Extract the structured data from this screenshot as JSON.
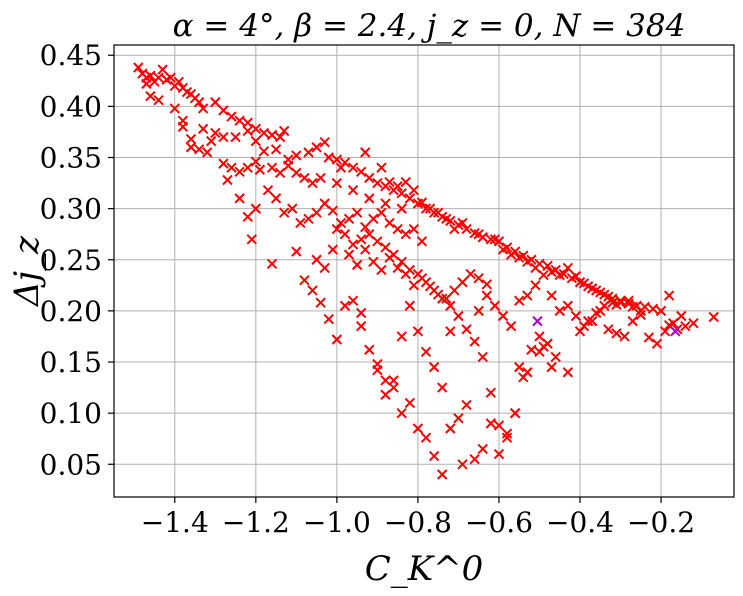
{
  "chart_data": {
    "type": "scatter",
    "title": "α = 4°, β = 2.4, j_z = 0, N = 384",
    "xlabel": "C_K^0",
    "ylabel": "Δj_z",
    "xlim": [
      -1.55,
      -0.02
    ],
    "ylim": [
      0.018,
      0.46
    ],
    "xticks": [
      -1.4,
      -1.2,
      -1.0,
      -0.8,
      -0.6,
      -0.4,
      -0.2
    ],
    "xtick_labels": [
      "−1.4",
      "−1.2",
      "−1.0",
      "−0.8",
      "−0.6",
      "−0.4",
      "−0.2"
    ],
    "yticks": [
      0.05,
      0.1,
      0.15,
      0.2,
      0.25,
      0.3,
      0.35,
      0.4,
      0.45
    ],
    "ytick_labels": [
      "0.05",
      "0.10",
      "0.15",
      "0.20",
      "0.25",
      "0.30",
      "0.35",
      "0.40",
      "0.45"
    ],
    "grid": true,
    "marker": "x",
    "series": [
      {
        "color": "#ff0000",
        "points": [
          [
            -1.49,
            0.438
          ],
          [
            -1.48,
            0.432
          ],
          [
            -1.47,
            0.428
          ],
          [
            -1.46,
            0.43
          ],
          [
            -1.45,
            0.424
          ],
          [
            -1.44,
            0.428
          ],
          [
            -1.43,
            0.436
          ],
          [
            -1.42,
            0.426
          ],
          [
            -1.41,
            0.428
          ],
          [
            -1.4,
            0.42
          ],
          [
            -1.39,
            0.424
          ],
          [
            -1.38,
            0.418
          ],
          [
            -1.37,
            0.414
          ],
          [
            -1.36,
            0.412
          ],
          [
            -1.35,
            0.408
          ],
          [
            -1.34,
            0.404
          ],
          [
            -1.33,
            0.398
          ],
          [
            -1.3,
            0.404
          ],
          [
            -1.28,
            0.396
          ],
          [
            -1.26,
            0.39
          ],
          [
            -1.24,
            0.386
          ],
          [
            -1.22,
            0.384
          ],
          [
            -1.2,
            0.378
          ],
          [
            -1.18,
            0.374
          ],
          [
            -1.16,
            0.372
          ],
          [
            -1.14,
            0.37
          ],
          [
            -1.13,
            0.376
          ],
          [
            -1.47,
            0.422
          ],
          [
            -1.46,
            0.41
          ],
          [
            -1.44,
            0.406
          ],
          [
            -1.4,
            0.398
          ],
          [
            -1.38,
            0.386
          ],
          [
            -1.38,
            0.38
          ],
          [
            -1.36,
            0.368
          ],
          [
            -1.33,
            0.378
          ],
          [
            -1.31,
            0.366
          ],
          [
            -1.3,
            0.374
          ],
          [
            -1.28,
            0.37
          ],
          [
            -1.25,
            0.37
          ],
          [
            -1.22,
            0.376
          ],
          [
            -1.2,
            0.366
          ],
          [
            -1.18,
            0.356
          ],
          [
            -1.15,
            0.358
          ],
          [
            -1.12,
            0.348
          ],
          [
            -1.1,
            0.352
          ],
          [
            -1.07,
            0.355
          ],
          [
            -1.05,
            0.36
          ],
          [
            -1.03,
            0.365
          ],
          [
            -1.02,
            0.35
          ],
          [
            -1.0,
            0.348
          ],
          [
            -0.98,
            0.345
          ],
          [
            -0.96,
            0.34
          ],
          [
            -0.94,
            0.336
          ],
          [
            -0.92,
            0.33
          ],
          [
            -0.9,
            0.325
          ],
          [
            -0.88,
            0.322
          ],
          [
            -0.86,
            0.318
          ],
          [
            -0.84,
            0.315
          ],
          [
            -0.82,
            0.31
          ],
          [
            -0.8,
            0.305
          ],
          [
            -0.78,
            0.3
          ],
          [
            -0.76,
            0.296
          ],
          [
            -0.74,
            0.292
          ],
          [
            -0.72,
            0.288
          ],
          [
            -0.7,
            0.284
          ],
          [
            -0.68,
            0.28
          ],
          [
            -0.66,
            0.276
          ],
          [
            -0.64,
            0.272
          ],
          [
            -0.62,
            0.27
          ],
          [
            -0.6,
            0.268
          ],
          [
            -0.58,
            0.262
          ],
          [
            -0.56,
            0.258
          ],
          [
            -0.54,
            0.254
          ],
          [
            -0.52,
            0.25
          ],
          [
            -0.5,
            0.246
          ],
          [
            -0.48,
            0.244
          ],
          [
            -0.46,
            0.24
          ],
          [
            -0.44,
            0.236
          ],
          [
            -0.42,
            0.232
          ],
          [
            -0.4,
            0.228
          ],
          [
            -0.38,
            0.224
          ],
          [
            -0.36,
            0.22
          ],
          [
            -0.34,
            0.216
          ],
          [
            -0.32,
            0.212
          ],
          [
            -0.3,
            0.208
          ],
          [
            -0.28,
            0.207
          ],
          [
            -0.26,
            0.205
          ],
          [
            -0.24,
            0.204
          ],
          [
            -0.22,
            0.202
          ],
          [
            -0.2,
            0.2
          ],
          [
            -0.99,
            0.34
          ],
          [
            -0.93,
            0.355
          ],
          [
            -0.89,
            0.34
          ],
          [
            -0.87,
            0.326
          ],
          [
            -0.85,
            0.322
          ],
          [
            -0.83,
            0.326
          ],
          [
            -0.81,
            0.318
          ],
          [
            -0.79,
            0.306
          ],
          [
            -0.77,
            0.3
          ],
          [
            -0.75,
            0.296
          ],
          [
            -0.73,
            0.29
          ],
          [
            -0.71,
            0.28
          ],
          [
            -0.69,
            0.286
          ],
          [
            -0.65,
            0.275
          ],
          [
            -0.61,
            0.27
          ],
          [
            -0.59,
            0.26
          ],
          [
            -0.57,
            0.255
          ],
          [
            -0.55,
            0.252
          ],
          [
            -0.53,
            0.248
          ],
          [
            -0.51,
            0.242
          ],
          [
            -0.47,
            0.238
          ],
          [
            -0.45,
            0.235
          ],
          [
            -0.43,
            0.242
          ],
          [
            -0.41,
            0.234
          ],
          [
            -0.39,
            0.227
          ],
          [
            -0.37,
            0.222
          ],
          [
            -0.35,
            0.218
          ],
          [
            -0.33,
            0.214
          ],
          [
            -0.31,
            0.206
          ],
          [
            -0.27,
            0.204
          ],
          [
            -0.25,
            0.2
          ],
          [
            -1.27,
            0.328
          ],
          [
            -1.24,
            0.31
          ],
          [
            -1.22,
            0.292
          ],
          [
            -1.2,
            0.3
          ],
          [
            -1.17,
            0.318
          ],
          [
            -1.15,
            0.31
          ],
          [
            -1.13,
            0.296
          ],
          [
            -1.11,
            0.3
          ],
          [
            -1.09,
            0.286
          ],
          [
            -1.07,
            0.29
          ],
          [
            -1.05,
            0.296
          ],
          [
            -1.03,
            0.305
          ],
          [
            -1.01,
            0.298
          ],
          [
            -0.99,
            0.286
          ],
          [
            -0.97,
            0.29
          ],
          [
            -0.95,
            0.296
          ],
          [
            -0.93,
            0.282
          ],
          [
            -0.91,
            0.29
          ],
          [
            -0.89,
            0.296
          ],
          [
            -0.87,
            0.286
          ],
          [
            -0.85,
            0.28
          ],
          [
            -0.83,
            0.275
          ],
          [
            -0.81,
            0.28
          ],
          [
            -0.79,
            0.268
          ],
          [
            -1.21,
            0.27
          ],
          [
            -1.16,
            0.246
          ],
          [
            -1.1,
            0.258
          ],
          [
            -1.05,
            0.25
          ],
          [
            -1.03,
            0.242
          ],
          [
            -1.01,
            0.26
          ],
          [
            -0.97,
            0.255
          ],
          [
            -0.95,
            0.245
          ],
          [
            -0.93,
            0.26
          ],
          [
            -0.91,
            0.248
          ],
          [
            -0.89,
            0.24
          ],
          [
            -0.87,
            0.252
          ],
          [
            -0.85,
            0.242
          ],
          [
            -0.83,
            0.236
          ],
          [
            -0.81,
            0.225
          ],
          [
            -0.79,
            0.232
          ],
          [
            -0.77,
            0.224
          ],
          [
            -0.75,
            0.216
          ],
          [
            -0.73,
            0.212
          ],
          [
            -0.71,
            0.22
          ],
          [
            -0.69,
            0.228
          ],
          [
            -0.67,
            0.236
          ],
          [
            -0.65,
            0.232
          ],
          [
            -0.63,
            0.226
          ],
          [
            -1.08,
            0.23
          ],
          [
            -1.06,
            0.22
          ],
          [
            -1.04,
            0.208
          ],
          [
            -1.02,
            0.192
          ],
          [
            -1.0,
            0.172
          ],
          [
            -0.98,
            0.205
          ],
          [
            -0.96,
            0.21
          ],
          [
            -0.94,
            0.198
          ],
          [
            -0.92,
            0.162
          ],
          [
            -0.9,
            0.142
          ],
          [
            -0.88,
            0.132
          ],
          [
            -0.86,
            0.125
          ],
          [
            -0.84,
            0.1
          ],
          [
            -0.82,
            0.11
          ],
          [
            -0.8,
            0.085
          ],
          [
            -0.78,
            0.076
          ],
          [
            -0.76,
            0.058
          ],
          [
            -0.74,
            0.04
          ],
          [
            -0.72,
            0.085
          ],
          [
            -0.7,
            0.095
          ],
          [
            -0.68,
            0.108
          ],
          [
            -0.94,
            0.185
          ],
          [
            -0.9,
            0.148
          ],
          [
            -0.88,
            0.118
          ],
          [
            -0.86,
            0.132
          ],
          [
            -0.84,
            0.175
          ],
          [
            -0.82,
            0.205
          ],
          [
            -0.8,
            0.18
          ],
          [
            -0.78,
            0.16
          ],
          [
            -0.76,
            0.145
          ],
          [
            -0.74,
            0.125
          ],
          [
            -0.72,
            0.18
          ],
          [
            -0.7,
            0.195
          ],
          [
            -0.68,
            0.182
          ],
          [
            -0.66,
            0.17
          ],
          [
            -0.64,
            0.155
          ],
          [
            -0.62,
            0.12
          ],
          [
            -0.6,
            0.088
          ],
          [
            -0.58,
            0.08
          ],
          [
            -0.56,
            0.1
          ],
          [
            -0.54,
            0.135
          ],
          [
            -0.52,
            0.162
          ],
          [
            -0.5,
            0.175
          ],
          [
            -0.48,
            0.168
          ],
          [
            -0.46,
            0.155
          ],
          [
            -0.62,
            0.09
          ],
          [
            -0.6,
            0.06
          ],
          [
            -0.64,
            0.065
          ],
          [
            -0.66,
            0.055
          ],
          [
            -0.69,
            0.05
          ],
          [
            -0.58,
            0.076
          ],
          [
            -0.56,
            0.1
          ],
          [
            -0.65,
            0.2
          ],
          [
            -0.63,
            0.215
          ],
          [
            -0.61,
            0.205
          ],
          [
            -0.59,
            0.195
          ],
          [
            -0.57,
            0.185
          ],
          [
            -0.55,
            0.21
          ],
          [
            -0.53,
            0.215
          ],
          [
            -0.51,
            0.225
          ],
          [
            -0.49,
            0.235
          ],
          [
            -0.47,
            0.215
          ],
          [
            -0.45,
            0.2
          ],
          [
            -0.43,
            0.205
          ],
          [
            -0.41,
            0.195
          ],
          [
            -0.39,
            0.185
          ],
          [
            -0.37,
            0.19
          ],
          [
            -0.35,
            0.2
          ],
          [
            -0.33,
            0.182
          ],
          [
            -0.31,
            0.178
          ],
          [
            -0.29,
            0.175
          ],
          [
            -0.27,
            0.19
          ],
          [
            -0.25,
            0.196
          ],
          [
            -0.23,
            0.174
          ],
          [
            -0.21,
            0.168
          ],
          [
            -0.19,
            0.18
          ],
          [
            -0.18,
            0.186
          ],
          [
            -0.17,
            0.188
          ],
          [
            -0.16,
            0.182
          ],
          [
            -0.15,
            0.195
          ],
          [
            -0.14,
            0.185
          ],
          [
            -0.12,
            0.188
          ],
          [
            -0.07,
            0.194
          ],
          [
            -0.18,
            0.215
          ],
          [
            -0.55,
            0.145
          ],
          [
            -0.53,
            0.14
          ],
          [
            -0.5,
            0.16
          ],
          [
            -0.49,
            0.165
          ],
          [
            -0.47,
            0.145
          ],
          [
            -0.43,
            0.14
          ],
          [
            -0.4,
            0.18
          ],
          [
            -0.38,
            0.19
          ],
          [
            -0.36,
            0.198
          ],
          [
            -0.34,
            0.205
          ],
          [
            -0.32,
            0.208
          ],
          [
            -0.3,
            0.21
          ],
          [
            -0.28,
            0.21
          ],
          [
            -1.0,
            0.28
          ],
          [
            -0.98,
            0.275
          ],
          [
            -0.96,
            0.265
          ],
          [
            -0.94,
            0.27
          ],
          [
            -0.92,
            0.275
          ],
          [
            -0.9,
            0.268
          ],
          [
            -0.88,
            0.262
          ],
          [
            -0.86,
            0.255
          ],
          [
            -0.84,
            0.248
          ],
          [
            -0.82,
            0.24
          ],
          [
            -0.8,
            0.236
          ],
          [
            -0.78,
            0.228
          ],
          [
            -0.76,
            0.22
          ],
          [
            -0.74,
            0.212
          ],
          [
            -0.72,
            0.205
          ],
          [
            -1.36,
            0.36
          ],
          [
            -1.34,
            0.358
          ],
          [
            -1.32,
            0.355
          ],
          [
            -1.28,
            0.344
          ],
          [
            -1.26,
            0.34
          ],
          [
            -1.24,
            0.336
          ],
          [
            -1.22,
            0.34
          ],
          [
            -1.2,
            0.346
          ],
          [
            -1.19,
            0.338
          ],
          [
            -1.16,
            0.34
          ],
          [
            -1.14,
            0.335
          ],
          [
            -1.12,
            0.342
          ],
          [
            -1.1,
            0.335
          ],
          [
            -1.08,
            0.33
          ],
          [
            -1.06,
            0.325
          ],
          [
            -1.04,
            0.33
          ],
          [
            -1.0,
            0.325
          ],
          [
            -0.96,
            0.318
          ],
          [
            -0.92,
            0.31
          ],
          [
            -0.88,
            0.305
          ],
          [
            -0.84,
            0.3
          ]
        ]
      },
      {
        "color": "#aa00cc",
        "points": [
          [
            -0.505,
            0.19
          ],
          [
            -0.165,
            0.18
          ]
        ]
      }
    ]
  }
}
